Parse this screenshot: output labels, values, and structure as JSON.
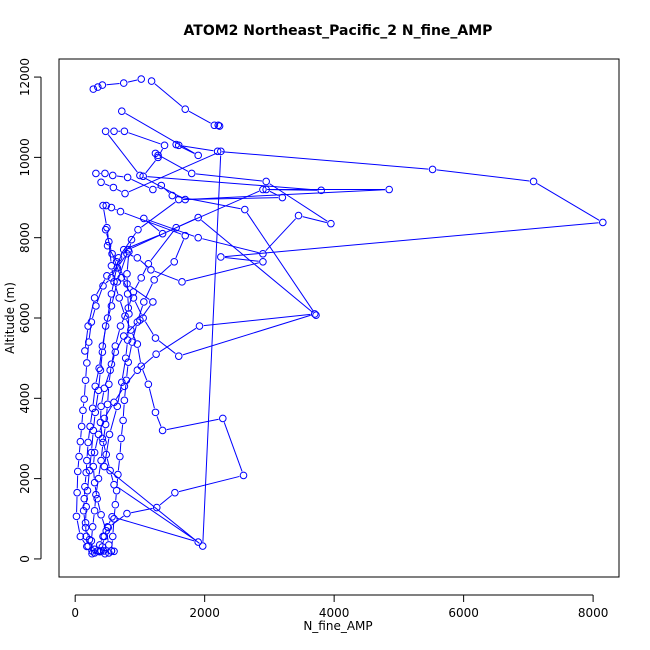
{
  "chart_data": {
    "type": "line",
    "title": "ATOM2 Northeast_Pacific_2 N_fine_AMP",
    "xlabel": "N_fine_AMP",
    "ylabel": "Altitude (m)",
    "xlim": [
      -250,
      8400
    ],
    "ylim": [
      -450,
      12450
    ],
    "x_ticks": [
      0,
      2000,
      4000,
      6000,
      8000
    ],
    "y_ticks": [
      0,
      2000,
      4000,
      6000,
      8000,
      10000,
      12000
    ],
    "grid": false,
    "line_color": "#0000ff",
    "marker": "open-circle",
    "series": [
      {
        "points": [
          [
            1020,
            11950
          ],
          [
            750,
            11850
          ],
          [
            420,
            11800
          ],
          [
            350,
            11750
          ],
          [
            280,
            11700
          ]
        ]
      },
      {
        "points": [
          [
            1180,
            11900
          ],
          [
            1700,
            11200
          ],
          [
            2150,
            10800
          ],
          [
            2210,
            10800
          ],
          [
            2230,
            10780
          ]
        ]
      },
      {
        "points": [
          [
            720,
            11150
          ],
          [
            1900,
            10050
          ],
          [
            1560,
            10320
          ],
          [
            1600,
            10300
          ],
          [
            2200,
            10150
          ],
          [
            5520,
            9700
          ],
          [
            7080,
            9400
          ],
          [
            8150,
            8380
          ],
          [
            2250,
            7520
          ],
          [
            2900,
            7400
          ],
          [
            1650,
            6900
          ],
          [
            1170,
            7200
          ],
          [
            960,
            7500
          ],
          [
            800,
            7600
          ],
          [
            650,
            7250
          ],
          [
            490,
            7050
          ],
          [
            300,
            6500
          ],
          [
            200,
            5800
          ],
          [
            150,
            5180
          ]
        ]
      },
      {
        "points": [
          [
            1280,
            10050
          ],
          [
            1240,
            10100
          ],
          [
            1800,
            9600
          ],
          [
            2950,
            9400
          ],
          [
            3950,
            8350
          ],
          [
            3450,
            8550
          ],
          [
            2900,
            7600
          ],
          [
            1900,
            8000
          ],
          [
            1060,
            8480
          ],
          [
            1350,
            8100
          ],
          [
            750,
            7700
          ],
          [
            560,
            7000
          ],
          [
            430,
            6800
          ],
          [
            320,
            6300
          ],
          [
            250,
            5900
          ],
          [
            210,
            5400
          ],
          [
            180,
            4880
          ],
          [
            160,
            4450
          ],
          [
            140,
            3980
          ],
          [
            120,
            3700
          ],
          [
            100,
            3300
          ],
          [
            80,
            2920
          ],
          [
            60,
            2550
          ],
          [
            40,
            2180
          ],
          [
            30,
            1650
          ],
          [
            20,
            1060
          ],
          [
            80,
            560
          ],
          [
            180,
            310
          ],
          [
            300,
            150
          ],
          [
            400,
            200
          ],
          [
            520,
            150
          ],
          [
            600,
            190
          ]
        ]
      },
      {
        "points": [
          [
            600,
            10650
          ],
          [
            760,
            10650
          ],
          [
            1380,
            10300
          ],
          [
            1280,
            10000
          ],
          [
            1050,
            9530
          ],
          [
            3800,
            9180
          ],
          [
            2950,
            9200
          ],
          [
            3200,
            9000
          ],
          [
            1600,
            8950
          ],
          [
            970,
            8200
          ],
          [
            670,
            7500
          ],
          [
            560,
            6600
          ],
          [
            500,
            6000
          ],
          [
            420,
            5300
          ],
          [
            370,
            4750
          ],
          [
            310,
            4300
          ],
          [
            270,
            3750
          ],
          [
            230,
            3300
          ],
          [
            200,
            2900
          ],
          [
            180,
            2450
          ],
          [
            170,
            2150
          ],
          [
            150,
            1800
          ],
          [
            140,
            1500
          ],
          [
            130,
            1200
          ],
          [
            160,
            780
          ],
          [
            220,
            480
          ],
          [
            300,
            240
          ],
          [
            380,
            180
          ],
          [
            460,
            130
          ]
        ]
      },
      {
        "points": [
          [
            470,
            10650
          ],
          [
            1000,
            9550
          ],
          [
            1700,
            8950
          ],
          [
            4850,
            9200
          ],
          [
            2900,
            9200
          ],
          [
            1560,
            8250
          ],
          [
            1130,
            7350
          ],
          [
            1020,
            7000
          ],
          [
            900,
            6650
          ],
          [
            820,
            6250
          ],
          [
            700,
            5800
          ],
          [
            620,
            5300
          ],
          [
            560,
            4850
          ],
          [
            520,
            4350
          ],
          [
            500,
            3850
          ],
          [
            470,
            3350
          ],
          [
            430,
            2900
          ],
          [
            400,
            2450
          ],
          [
            360,
            2000
          ],
          [
            320,
            1600
          ],
          [
            300,
            1200
          ],
          [
            270,
            800
          ],
          [
            250,
            450
          ],
          [
            260,
            200
          ]
        ]
      },
      {
        "points": [
          [
            320,
            9600
          ],
          [
            460,
            9600
          ],
          [
            580,
            9550
          ],
          [
            810,
            9500
          ],
          [
            1200,
            9200
          ],
          [
            1330,
            9300
          ],
          [
            1500,
            9050
          ],
          [
            2620,
            8700
          ],
          [
            3720,
            6070
          ],
          [
            1900,
            8500
          ],
          [
            820,
            7700
          ],
          [
            650,
            6900
          ],
          [
            560,
            6300
          ],
          [
            470,
            5800
          ],
          [
            420,
            5150
          ],
          [
            390,
            4700
          ],
          [
            360,
            4200
          ],
          [
            310,
            3650
          ],
          [
            280,
            3200
          ],
          [
            250,
            2650
          ],
          [
            220,
            2200
          ],
          [
            190,
            1700
          ],
          [
            170,
            1300
          ],
          [
            160,
            900
          ],
          [
            170,
            560
          ],
          [
            200,
            320
          ],
          [
            260,
            130
          ]
        ]
      },
      {
        "points": [
          [
            400,
            9380
          ],
          [
            590,
            9250
          ],
          [
            770,
            9100
          ],
          [
            2250,
            10150
          ],
          [
            1970,
            320
          ],
          [
            450,
            2300
          ],
          [
            530,
            3100
          ],
          [
            650,
            3800
          ],
          [
            720,
            4400
          ],
          [
            780,
            5000
          ],
          [
            810,
            5450
          ],
          [
            830,
            6100
          ],
          [
            810,
            6600
          ],
          [
            800,
            7100
          ],
          [
            830,
            7650
          ],
          [
            870,
            7950
          ]
        ]
      },
      {
        "points": [
          [
            480,
            8800
          ],
          [
            560,
            8750
          ],
          [
            700,
            8650
          ],
          [
            1700,
            8050
          ],
          [
            1530,
            7400
          ],
          [
            1220,
            6950
          ],
          [
            1060,
            6400
          ],
          [
            960,
            5900
          ],
          [
            880,
            5400
          ],
          [
            820,
            4900
          ],
          [
            790,
            4450
          ],
          [
            760,
            3950
          ],
          [
            740,
            3450
          ],
          [
            710,
            3000
          ],
          [
            690,
            2550
          ],
          [
            660,
            2100
          ],
          [
            640,
            1700
          ],
          [
            620,
            1350
          ],
          [
            600,
            1000
          ],
          [
            580,
            560
          ],
          [
            560,
            200
          ]
        ]
      },
      {
        "points": [
          [
            430,
            8800
          ],
          [
            490,
            8250
          ],
          [
            520,
            7900
          ],
          [
            560,
            7300
          ],
          [
            600,
            6900
          ],
          [
            680,
            6500
          ],
          [
            770,
            6050
          ],
          [
            860,
            5700
          ],
          [
            960,
            5350
          ],
          [
            1020,
            4800
          ],
          [
            1130,
            4350
          ],
          [
            1240,
            3650
          ],
          [
            1350,
            3200
          ],
          [
            2280,
            3500
          ],
          [
            2600,
            2080
          ],
          [
            1540,
            1650
          ],
          [
            1260,
            1280
          ],
          [
            800,
            1130
          ],
          [
            510,
            780
          ],
          [
            430,
            560
          ],
          [
            380,
            350
          ],
          [
            350,
            200
          ]
        ]
      },
      {
        "points": [
          [
            470,
            8200
          ],
          [
            570,
            7600
          ],
          [
            710,
            7000
          ],
          [
            900,
            6500
          ],
          [
            1050,
            6000
          ],
          [
            1240,
            5500
          ],
          [
            1600,
            5050
          ],
          [
            3700,
            6100
          ],
          [
            1920,
            5800
          ],
          [
            1250,
            5100
          ],
          [
            960,
            4700
          ],
          [
            760,
            4300
          ],
          [
            600,
            3900
          ],
          [
            450,
            3500
          ],
          [
            360,
            3100
          ],
          [
            300,
            2650
          ],
          [
            280,
            2300
          ],
          [
            300,
            1900
          ],
          [
            340,
            1500
          ],
          [
            400,
            1100
          ],
          [
            480,
            700
          ],
          [
            520,
            350
          ],
          [
            560,
            200
          ]
        ]
      },
      {
        "points": [
          [
            500,
            7800
          ],
          [
            640,
            7400
          ],
          [
            800,
            6850
          ],
          [
            1200,
            6400
          ],
          [
            1000,
            5950
          ],
          [
            750,
            5550
          ],
          [
            620,
            5150
          ],
          [
            540,
            4700
          ],
          [
            450,
            4250
          ],
          [
            400,
            3800
          ],
          [
            390,
            3400
          ],
          [
            420,
            3000
          ],
          [
            480,
            2600
          ],
          [
            540,
            2200
          ],
          [
            600,
            1850
          ],
          [
            1900,
            420
          ],
          [
            570,
            1050
          ],
          [
            500,
            800
          ],
          [
            450,
            560
          ],
          [
            420,
            300
          ],
          [
            440,
            200
          ]
        ]
      }
    ]
  }
}
